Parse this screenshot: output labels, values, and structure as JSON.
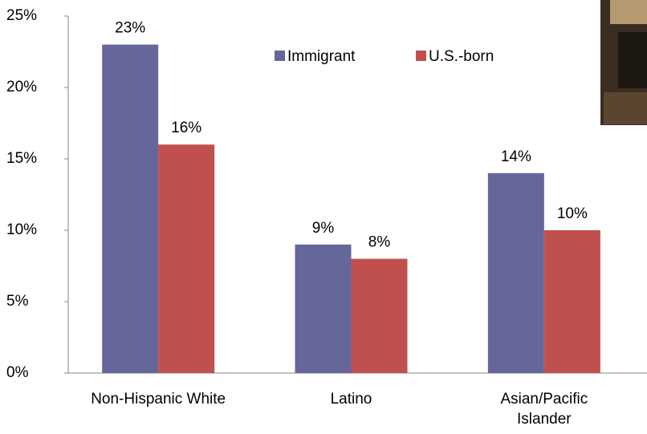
{
  "chart_data": {
    "type": "bar",
    "categories": [
      "Non-Hispanic White",
      "Latino",
      "Asian/Pacific Islander"
    ],
    "series": [
      {
        "name": "Immigrant",
        "color": "#65679b",
        "values": [
          23,
          9,
          14
        ],
        "value_labels": [
          "23%",
          "9%",
          "14%"
        ]
      },
      {
        "name": "U.S.-born",
        "color": "#c0504d",
        "values": [
          16,
          8,
          10
        ],
        "value_labels": [
          "16%",
          "8%",
          "10%"
        ]
      }
    ],
    "ylim": [
      0,
      25
    ],
    "yticks": [
      {
        "value": 0,
        "label": "0%"
      },
      {
        "value": 5,
        "label": "5%"
      },
      {
        "value": 10,
        "label": "10%"
      },
      {
        "value": 15,
        "label": "15%"
      },
      {
        "value": 20,
        "label": "20%"
      },
      {
        "value": 25,
        "label": "25%"
      }
    ],
    "grid": false
  }
}
